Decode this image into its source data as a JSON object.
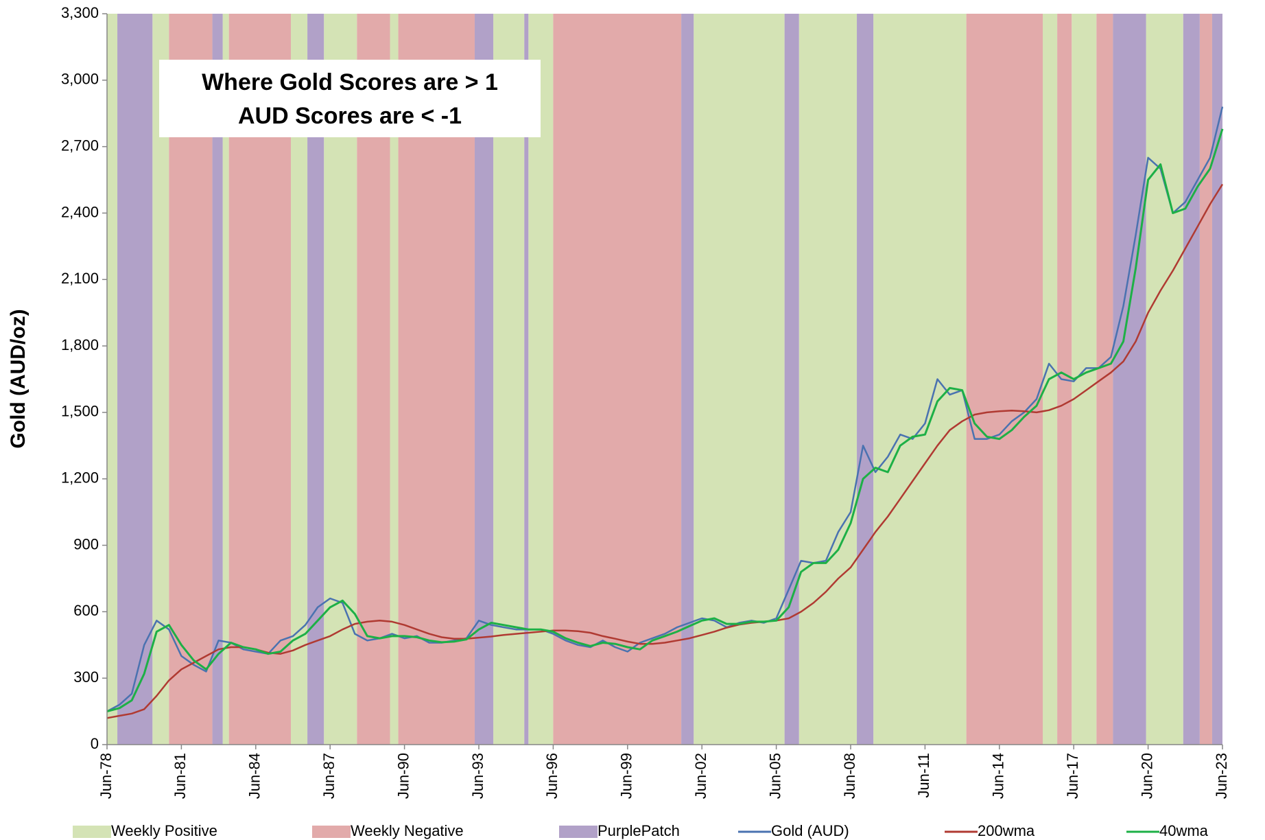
{
  "chart_data": {
    "type": "line",
    "annotation": [
      "Where Gold Scores are > 1",
      "AUD Scores are < -1"
    ],
    "y_label": "Gold (AUD/oz)",
    "ylim": [
      0,
      3300
    ],
    "yticks": [
      0,
      300,
      600,
      900,
      {
        "value": 1200,
        "label": "1,200"
      },
      {
        "value": 1500,
        "label": "1,500"
      },
      {
        "value": 1800,
        "label": "1,800"
      },
      {
        "value": 2100,
        "label": "2,100"
      },
      {
        "value": 2400,
        "label": "2,400"
      },
      {
        "value": 2700,
        "label": "2,700"
      },
      {
        "value": 3000,
        "label": "3,000"
      },
      {
        "value": 3300,
        "label": "3,300"
      }
    ],
    "xlim": [
      "1978-06",
      "2023-06"
    ],
    "xticks": [
      {
        "value": "1978-06",
        "label": "Jun-78"
      },
      {
        "value": "1981-06",
        "label": "Jun-81"
      },
      {
        "value": "1984-06",
        "label": "Jun-84"
      },
      {
        "value": "1987-06",
        "label": "Jun-87"
      },
      {
        "value": "1990-06",
        "label": "Jun-90"
      },
      {
        "value": "1993-06",
        "label": "Jun-93"
      },
      {
        "value": "1996-06",
        "label": "Jun-96"
      },
      {
        "value": "1999-06",
        "label": "Jun-99"
      },
      {
        "value": "2002-06",
        "label": "Jun-02"
      },
      {
        "value": "2005-06",
        "label": "Jun-05"
      },
      {
        "value": "2008-06",
        "label": "Jun-08"
      },
      {
        "value": "2011-06",
        "label": "Jun-11"
      },
      {
        "value": "2014-06",
        "label": "Jun-14"
      },
      {
        "value": "2017-06",
        "label": "Jun-17"
      },
      {
        "value": "2020-06",
        "label": "Jun-20"
      },
      {
        "value": "2023-06",
        "label": "Jun-23"
      }
    ],
    "bands": [
      {
        "name": "Weekly Positive",
        "color": "#d4e3b5",
        "periods": [
          [
            "1978-06",
            "1978-11"
          ],
          [
            "1980-04",
            "1980-12"
          ],
          [
            "1983-02",
            "1983-05"
          ],
          [
            "1985-11",
            "1986-07"
          ],
          [
            "1987-03",
            "1988-07"
          ],
          [
            "1989-11",
            "1990-03"
          ],
          [
            "1994-01",
            "1995-04"
          ],
          [
            "1995-06",
            "1996-06"
          ],
          [
            "2002-02",
            "2005-10"
          ],
          [
            "2006-05",
            "2008-09"
          ],
          [
            "2009-05",
            "2013-02"
          ],
          [
            "2016-03",
            "2016-10"
          ],
          [
            "2017-05",
            "2018-05"
          ],
          [
            "2020-05",
            "2021-11"
          ]
        ]
      },
      {
        "name": "Weekly Negative",
        "color": "#e2aaaa",
        "periods": [
          [
            "1980-12",
            "1982-09"
          ],
          [
            "1983-05",
            "1985-11"
          ],
          [
            "1988-07",
            "1989-11"
          ],
          [
            "1990-03",
            "1993-04"
          ],
          [
            "1996-06",
            "2001-08"
          ],
          [
            "2013-02",
            "2016-03"
          ],
          [
            "2016-10",
            "2017-05"
          ],
          [
            "2018-05",
            "2019-01"
          ],
          [
            "2022-07",
            "2023-01"
          ]
        ]
      },
      {
        "name": "PurplePatch",
        "color": "#b1a1c8",
        "periods": [
          [
            "1978-11",
            "1980-04"
          ],
          [
            "1982-09",
            "1983-02"
          ],
          [
            "1986-07",
            "1987-03"
          ],
          [
            "1993-04",
            "1994-01"
          ],
          [
            "1995-04",
            "1995-06"
          ],
          [
            "2001-08",
            "2002-02"
          ],
          [
            "2005-10",
            "2006-05"
          ],
          [
            "2008-09",
            "2009-05"
          ],
          [
            "2019-01",
            "2020-05"
          ],
          [
            "2021-11",
            "2022-07"
          ],
          [
            "2023-01",
            "2023-06"
          ]
        ]
      }
    ],
    "x": [
      "1978-06",
      "1978-12",
      "1979-06",
      "1979-12",
      "1980-06",
      "1980-12",
      "1981-06",
      "1981-12",
      "1982-06",
      "1982-12",
      "1983-06",
      "1983-12",
      "1984-06",
      "1984-12",
      "1985-06",
      "1985-12",
      "1986-06",
      "1986-12",
      "1987-06",
      "1987-12",
      "1988-06",
      "1988-12",
      "1989-06",
      "1989-12",
      "1990-06",
      "1990-12",
      "1991-06",
      "1991-12",
      "1992-06",
      "1992-12",
      "1993-06",
      "1993-12",
      "1994-06",
      "1994-12",
      "1995-06",
      "1995-12",
      "1996-06",
      "1996-12",
      "1997-06",
      "1997-12",
      "1998-06",
      "1998-12",
      "1999-06",
      "1999-12",
      "2000-06",
      "2000-12",
      "2001-06",
      "2001-12",
      "2002-06",
      "2002-12",
      "2003-06",
      "2003-12",
      "2004-06",
      "2004-12",
      "2005-06",
      "2005-12",
      "2006-06",
      "2006-12",
      "2007-06",
      "2007-12",
      "2008-06",
      "2008-12",
      "2009-06",
      "2009-12",
      "2010-06",
      "2010-12",
      "2011-06",
      "2011-12",
      "2012-06",
      "2012-12",
      "2013-06",
      "2013-12",
      "2014-06",
      "2014-12",
      "2015-06",
      "2015-12",
      "2016-06",
      "2016-12",
      "2017-06",
      "2017-12",
      "2018-06",
      "2018-12",
      "2019-06",
      "2019-12",
      "2020-06",
      "2020-12",
      "2021-06",
      "2021-12",
      "2022-06",
      "2022-12",
      "2023-06"
    ],
    "series": [
      {
        "name": "Gold (AUD)",
        "color": "#4a72b0",
        "width": 2.5,
        "values": [
          150,
          180,
          230,
          450,
          560,
          520,
          400,
          360,
          330,
          470,
          460,
          430,
          420,
          410,
          470,
          490,
          540,
          620,
          660,
          640,
          500,
          470,
          480,
          500,
          480,
          490,
          460,
          460,
          470,
          480,
          560,
          540,
          530,
          520,
          520,
          520,
          500,
          470,
          450,
          440,
          470,
          440,
          420,
          460,
          480,
          500,
          530,
          550,
          570,
          560,
          530,
          550,
          560,
          550,
          570,
          700,
          830,
          820,
          830,
          960,
          1050,
          1350,
          1230,
          1300,
          1400,
          1380,
          1450,
          1650,
          1580,
          1600,
          1380,
          1380,
          1400,
          1460,
          1500,
          1560,
          1720,
          1650,
          1640,
          1700,
          1700,
          1750,
          1980,
          2300,
          2650,
          2600,
          2400,
          2450,
          2550,
          2650,
          2880
        ]
      },
      {
        "name": "200wma",
        "color": "#b03a32",
        "width": 2.5,
        "values": [
          120,
          130,
          140,
          160,
          220,
          290,
          340,
          370,
          400,
          430,
          440,
          440,
          430,
          415,
          410,
          425,
          450,
          470,
          490,
          520,
          545,
          555,
          560,
          555,
          540,
          520,
          500,
          485,
          478,
          478,
          483,
          488,
          495,
          500,
          505,
          510,
          515,
          515,
          512,
          505,
          490,
          478,
          465,
          455,
          455,
          460,
          470,
          480,
          495,
          510,
          528,
          542,
          550,
          555,
          560,
          570,
          600,
          640,
          690,
          750,
          800,
          880,
          960,
          1030,
          1110,
          1190,
          1270,
          1350,
          1420,
          1460,
          1490,
          1500,
          1505,
          1508,
          1505,
          1500,
          1510,
          1530,
          1560,
          1600,
          1640,
          1680,
          1730,
          1820,
          1950,
          2050,
          2140,
          2240,
          2340,
          2440,
          2530
        ]
      },
      {
        "name": "40wma",
        "color": "#1db046",
        "width": 3,
        "values": [
          150,
          165,
          200,
          320,
          510,
          540,
          450,
          380,
          340,
          410,
          460,
          440,
          430,
          410,
          420,
          470,
          500,
          560,
          620,
          650,
          590,
          490,
          480,
          490,
          490,
          485,
          470,
          462,
          465,
          475,
          520,
          550,
          540,
          530,
          520,
          520,
          510,
          480,
          460,
          445,
          460,
          455,
          440,
          430,
          470,
          490,
          510,
          535,
          560,
          570,
          545,
          545,
          555,
          555,
          560,
          620,
          780,
          820,
          820,
          880,
          1000,
          1200,
          1250,
          1230,
          1350,
          1390,
          1400,
          1550,
          1610,
          1600,
          1450,
          1390,
          1380,
          1420,
          1480,
          1530,
          1650,
          1680,
          1650,
          1680,
          1700,
          1720,
          1820,
          2150,
          2550,
          2620,
          2400,
          2420,
          2520,
          2600,
          2780
        ]
      }
    ]
  }
}
